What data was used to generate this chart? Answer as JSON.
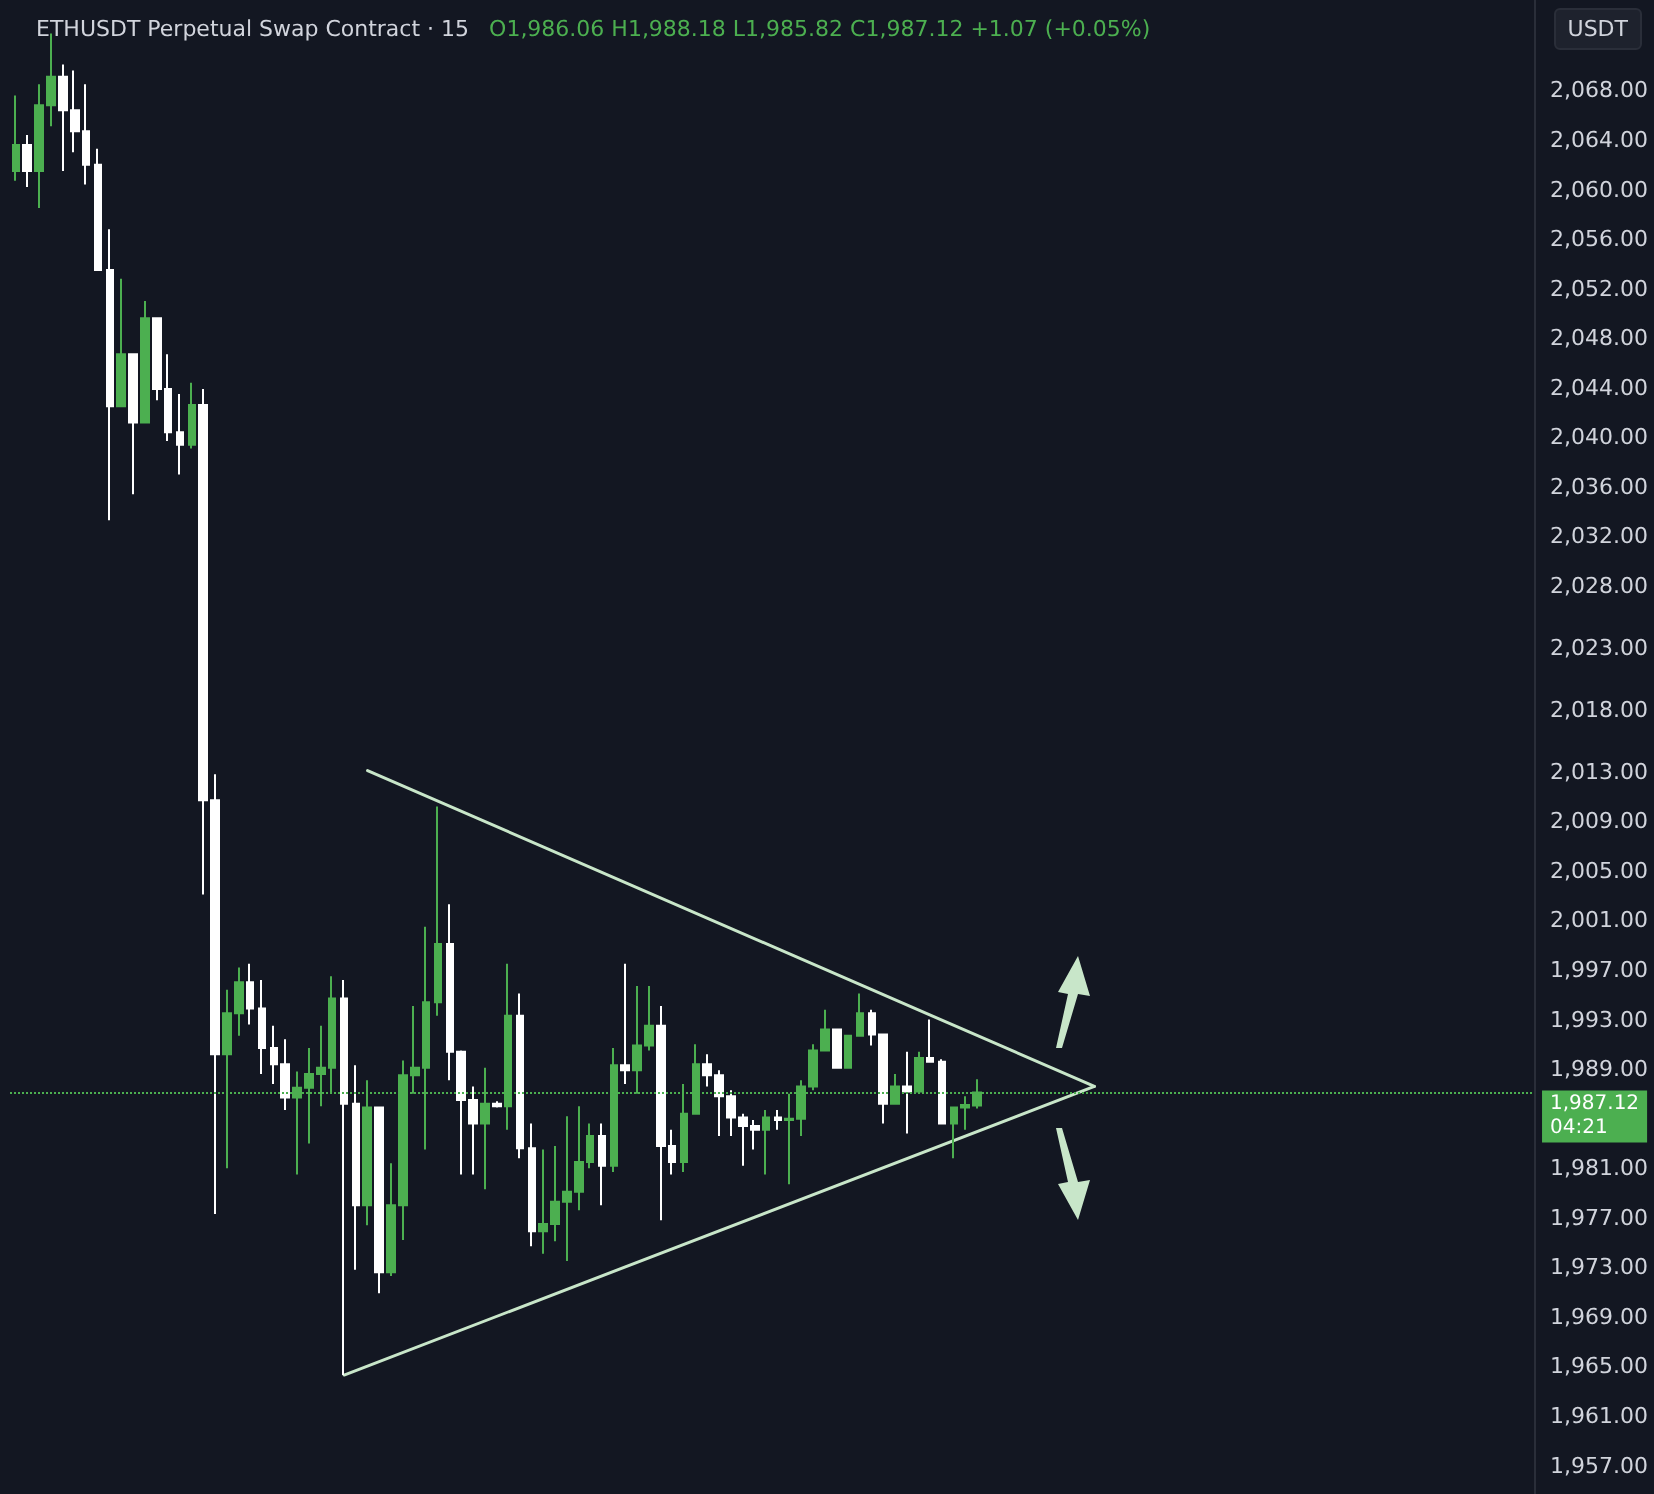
{
  "chart_data": {
    "type": "candlestick",
    "title": "ETHUSDT Perpetual Swap Contract · 15",
    "subtitle": "O1,986.06 H1,988.18 L1,985.82 C1,987.12 +1.07 (+0.05%)",
    "ylabel": "USDT",
    "categories": [
      null,
      null,
      null,
      null,
      null,
      null,
      null,
      null,
      null,
      null,
      null,
      null,
      null,
      null,
      null,
      null,
      null,
      null,
      null,
      null,
      null,
      null,
      null,
      null,
      null,
      null,
      null,
      null,
      null,
      null,
      null,
      null,
      null,
      null,
      null,
      null,
      null,
      null,
      null,
      null,
      null,
      null,
      null,
      null,
      null,
      null,
      null,
      null,
      null,
      null,
      null,
      null,
      null,
      null,
      null,
      null,
      null,
      null,
      null,
      null,
      null,
      null,
      null,
      null,
      null,
      null,
      null,
      null,
      null,
      null,
      null,
      null,
      null,
      null,
      null,
      null,
      null,
      null,
      null,
      null,
      null,
      null,
      null,
      null,
      null,
      null,
      null,
      null,
      null,
      null,
      null,
      null,
      null,
      null,
      null,
      null,
      null,
      null,
      null,
      null,
      null,
      null,
      null,
      null,
      null,
      null,
      null,
      null,
      null,
      null,
      null,
      null,
      null,
      null,
      null,
      null,
      null,
      null,
      null,
      null,
      null,
      null,
      null,
      null,
      null,
      null,
      null,
      null,
      null,
      null
    ],
    "ohlc": [
      [
        2061.5,
        2067.6,
        2060.7,
        2063.6
      ],
      [
        2063.6,
        2064.4,
        2060.2,
        2061.5
      ],
      [
        2061.5,
        2068.5,
        2058.5,
        2066.8
      ],
      [
        2066.8,
        2072.6,
        2065.1,
        2069.1
      ],
      [
        2069.1,
        2070.1,
        2061.5,
        2066.4
      ],
      [
        2066.4,
        2069.6,
        2063.0,
        2064.7
      ],
      [
        2064.7,
        2068.5,
        2060.4,
        2062.0
      ],
      [
        2062.0,
        2063.3,
        2053.5,
        2053.5
      ],
      [
        2053.5,
        2056.8,
        2033.3,
        2042.5
      ],
      [
        2042.5,
        2052.8,
        2042.5,
        2046.7
      ],
      [
        2046.7,
        2046.7,
        2035.4,
        2041.2
      ],
      [
        2041.2,
        2051.0,
        2041.2,
        2049.6
      ],
      [
        2049.6,
        2049.6,
        2043.0,
        2043.9
      ],
      [
        2043.9,
        2046.7,
        2039.7,
        2040.4
      ],
      [
        2040.4,
        2043.5,
        2037.0,
        2039.4
      ],
      [
        2039.4,
        2044.4,
        2039.1,
        2042.6
      ],
      [
        2042.6,
        2043.9,
        2003.1,
        2010.7
      ],
      [
        2010.7,
        2012.8,
        1977.3,
        1990.2
      ],
      [
        1990.2,
        1995.4,
        1981.0,
        1993.5
      ],
      [
        1993.5,
        1997.2,
        1991.7,
        1996.0
      ],
      [
        1996.0,
        1997.5,
        1992.6,
        1993.9
      ],
      [
        1993.9,
        1996.2,
        1988.6,
        1990.7
      ],
      [
        1990.7,
        1992.5,
        1987.8,
        1989.4
      ],
      [
        1989.4,
        1991.4,
        1985.7,
        1986.7
      ],
      [
        1986.7,
        1988.8,
        1980.5,
        1987.5
      ],
      [
        1987.5,
        1990.7,
        1983.0,
        1988.6
      ],
      [
        1988.6,
        1992.5,
        1986.0,
        1989.1
      ],
      [
        1989.1,
        1996.5,
        1987.0,
        1994.7
      ],
      [
        1994.7,
        1996.2,
        1964.3,
        1986.2
      ],
      [
        1986.2,
        1989.3,
        1972.8,
        1978.0
      ],
      [
        1978.0,
        1988.1,
        1976.4,
        1985.9
      ],
      [
        1985.9,
        1985.9,
        1970.9,
        1972.6
      ],
      [
        1972.6,
        1981.4,
        1972.3,
        1978.0
      ],
      [
        1978.0,
        1989.7,
        1975.2,
        1988.5
      ],
      [
        1988.5,
        1994.1,
        1987.0,
        1989.1
      ],
      [
        1989.1,
        2000.5,
        1982.5,
        1994.4
      ],
      [
        1994.4,
        2010.2,
        1993.3,
        1999.1
      ],
      [
        1999.1,
        2002.3,
        1988.1,
        1990.4
      ],
      [
        1990.4,
        1990.5,
        1980.5,
        1986.5
      ],
      [
        1986.5,
        1987.6,
        1980.5,
        1984.6
      ],
      [
        1984.6,
        1989.1,
        1979.3,
        1986.2
      ],
      [
        1986.2,
        1986.4,
        1985.9,
        1986.0
      ],
      [
        1986.0,
        1997.5,
        1984.1,
        1993.3
      ],
      [
        1993.3,
        1995.1,
        1981.8,
        1982.6
      ],
      [
        1982.6,
        1984.6,
        1974.7,
        1975.9
      ],
      [
        1975.9,
        1982.5,
        1974.1,
        1976.5
      ],
      [
        1976.5,
        1982.8,
        1975.1,
        1978.3
      ],
      [
        1978.3,
        1985.2,
        1973.5,
        1979.1
      ],
      [
        1979.1,
        1986.0,
        1977.6,
        1981.5
      ],
      [
        1981.5,
        1984.6,
        1981.0,
        1983.6
      ],
      [
        1983.6,
        1984.6,
        1978.0,
        1981.2
      ],
      [
        1981.2,
        1990.7,
        1980.7,
        1989.3
      ],
      [
        1989.3,
        1997.5,
        1987.8,
        1988.9
      ],
      [
        1988.9,
        1995.7,
        1987.0,
        1990.9
      ],
      [
        1990.9,
        1995.7,
        1990.5,
        1992.5
      ],
      [
        1992.5,
        1994.1,
        1976.8,
        1982.8
      ],
      [
        1982.8,
        1984.1,
        1980.5,
        1981.5
      ],
      [
        1981.5,
        1987.8,
        1980.7,
        1985.4
      ],
      [
        1985.4,
        1991.0,
        1985.4,
        1989.4
      ],
      [
        1989.4,
        1990.2,
        1987.6,
        1988.5
      ],
      [
        1988.5,
        1988.9,
        1983.6,
        1986.8
      ],
      [
        1986.8,
        1987.3,
        1983.6,
        1985.1
      ],
      [
        1985.1,
        1985.4,
        1981.2,
        1984.4
      ],
      [
        1984.4,
        1984.9,
        1982.5,
        1984.1
      ],
      [
        1984.1,
        1985.7,
        1980.5,
        1985.1
      ],
      [
        1985.1,
        1985.7,
        1984.1,
        1984.9
      ],
      [
        1984.9,
        1987.0,
        1979.7,
        1985.0
      ],
      [
        1985.0,
        1988.1,
        1983.6,
        1987.6
      ],
      [
        1987.6,
        1991.0,
        1987.3,
        1990.5
      ],
      [
        1990.5,
        1993.8,
        1990.5,
        1992.2
      ],
      [
        1992.2,
        1992.2,
        1989.1,
        1989.1
      ],
      [
        1989.1,
        1991.7,
        1989.1,
        1991.7
      ],
      [
        1991.7,
        1995.1,
        1991.7,
        1993.5
      ],
      [
        1993.5,
        1993.8,
        1990.9,
        1991.8
      ],
      [
        1991.8,
        1991.8,
        1984.6,
        1986.2
      ],
      [
        1986.2,
        1988.6,
        1986.2,
        1987.6
      ],
      [
        1987.6,
        1990.4,
        1983.8,
        1987.2
      ],
      [
        1987.2,
        1990.4,
        1987.2,
        1989.9
      ],
      [
        1989.9,
        1993.0,
        1989.6,
        1989.6
      ],
      [
        1989.6,
        1989.8,
        1984.6,
        1984.6
      ],
      [
        1984.6,
        1985.9,
        1981.8,
        1985.9
      ],
      [
        1985.9,
        1986.8,
        1984.1,
        1986.1
      ],
      [
        1986.06,
        1988.18,
        1985.82,
        1987.12
      ],
      null,
      null,
      null,
      null,
      null,
      null,
      null,
      null,
      null,
      null,
      null,
      null,
      null,
      null,
      null,
      null,
      null,
      null,
      null,
      null,
      null,
      null,
      null,
      null,
      null,
      null,
      null,
      null,
      null,
      null,
      null,
      null,
      null,
      null,
      null,
      null,
      null,
      null,
      null,
      null,
      null,
      null,
      null,
      null,
      null,
      null,
      null
    ],
    "colors": [
      "#4caf50",
      "#ffffff",
      "#4caf50",
      "#4caf50",
      "#ffffff",
      "#ffffff",
      "#ffffff",
      "#ffffff",
      "#ffffff",
      "#4caf50",
      "#ffffff",
      "#4caf50",
      "#ffffff",
      "#ffffff",
      "#ffffff",
      "#4caf50",
      "#ffffff",
      "#ffffff",
      "#4caf50",
      "#4caf50",
      "#ffffff",
      "#ffffff",
      "#ffffff",
      "#ffffff",
      "#4caf50",
      "#4caf50",
      "#4caf50",
      "#4caf50",
      "#ffffff",
      "#ffffff",
      "#4caf50",
      "#ffffff",
      "#4caf50",
      "#4caf50",
      "#4caf50",
      "#4caf50",
      "#4caf50",
      "#ffffff",
      "#ffffff",
      "#ffffff",
      "#4caf50",
      "#ffffff",
      "#4caf50",
      "#ffffff",
      "#ffffff",
      "#4caf50",
      "#4caf50",
      "#4caf50",
      "#4caf50",
      "#4caf50",
      "#ffffff",
      "#4caf50",
      "#ffffff",
      "#4caf50",
      "#4caf50",
      "#ffffff",
      "#ffffff",
      "#4caf50",
      "#4caf50",
      "#ffffff",
      "#ffffff",
      "#ffffff",
      "#ffffff",
      "#ffffff",
      "#4caf50",
      "#ffffff",
      "#4caf50",
      "#4caf50",
      "#4caf50",
      "#4caf50",
      "#ffffff",
      "#4caf50",
      "#4caf50",
      "#ffffff",
      "#ffffff",
      "#4caf50",
      "#ffffff",
      "#4caf50",
      "#ffffff",
      "#ffffff",
      "#4caf50",
      "#4caf50",
      "#4caf50",
      null,
      null,
      null,
      null,
      null,
      null,
      null,
      null,
      null,
      null,
      null,
      null,
      null,
      null,
      null,
      null,
      null,
      null,
      null,
      null,
      null,
      null,
      null,
      null,
      null,
      null,
      null,
      null,
      null,
      null,
      null,
      null,
      null,
      null,
      null,
      null,
      null,
      null,
      null,
      null,
      null,
      null,
      null,
      null,
      null,
      null,
      null
    ],
    "series": [
      {
        "type": "line",
        "color": "#c8e6c9",
        "values": [
          null,
          null,
          null,
          null,
          null,
          null,
          null,
          null,
          null,
          null,
          null,
          null,
          null,
          null,
          null,
          null,
          null,
          null,
          null,
          null,
          null,
          null,
          null,
          null,
          null,
          null,
          null,
          null,
          null,
          null,
          2013.1,
          null,
          null,
          null,
          null,
          null,
          null,
          null,
          null,
          null,
          null,
          null,
          null,
          null,
          null,
          null,
          null,
          null,
          null,
          null,
          null,
          null,
          null,
          null,
          null,
          null,
          null,
          null,
          null,
          null,
          null,
          null,
          null,
          null,
          null,
          null,
          null,
          null,
          null,
          null,
          null,
          null,
          null,
          null,
          null,
          null,
          null,
          null,
          null,
          null,
          null,
          null,
          null,
          null,
          null,
          null,
          null,
          null,
          null,
          null,
          null,
          null,
          1987.6,
          null,
          null,
          null,
          null,
          null,
          null,
          null,
          null,
          null,
          null,
          null,
          null,
          null,
          null,
          null,
          null,
          null,
          null,
          null,
          null,
          null,
          null,
          null,
          null,
          null,
          null,
          null,
          null,
          null,
          null,
          null,
          null,
          null,
          null,
          null,
          null,
          null
        ]
      },
      {
        "type": "line",
        "color": "#c8e6c9",
        "values": [
          null,
          null,
          null,
          null,
          null,
          null,
          null,
          null,
          null,
          null,
          null,
          null,
          null,
          null,
          null,
          null,
          null,
          null,
          null,
          null,
          null,
          null,
          null,
          null,
          null,
          null,
          null,
          null,
          1964.3,
          null,
          null,
          null,
          null,
          null,
          null,
          null,
          null,
          null,
          null,
          null,
          null,
          null,
          null,
          null,
          null,
          null,
          null,
          null,
          null,
          null,
          null,
          null,
          null,
          null,
          null,
          null,
          null,
          null,
          null,
          null,
          null,
          null,
          null,
          null,
          null,
          null,
          null,
          null,
          null,
          null,
          null,
          null,
          null,
          null,
          null,
          null,
          null,
          null,
          null,
          null,
          null,
          null,
          null,
          null,
          null,
          null,
          null,
          null,
          null,
          null,
          null,
          null,
          1987.6,
          null,
          null,
          null,
          null,
          null,
          null,
          null,
          null,
          null,
          null,
          null,
          null,
          null,
          null,
          null,
          null,
          null,
          null,
          null,
          null,
          null,
          null,
          null,
          null,
          null,
          null,
          null,
          null,
          null,
          null,
          null,
          null,
          null,
          null,
          null,
          null,
          null
        ]
      }
    ],
    "ylim": [
      1954.7,
      2075.3
    ],
    "yticks": [
      {
        "value": 2068,
        "label": "2,068.00"
      },
      {
        "value": 2064,
        "label": "2,064.00"
      },
      {
        "value": 2060,
        "label": "2,060.00"
      },
      {
        "value": 2056,
        "label": "2,056.00"
      },
      {
        "value": 2052,
        "label": "2,052.00"
      },
      {
        "value": 2048,
        "label": "2,048.00"
      },
      {
        "value": 2044,
        "label": "2,044.00"
      },
      {
        "value": 2040,
        "label": "2,040.00"
      },
      {
        "value": 2036,
        "label": "2,036.00"
      },
      {
        "value": 2032,
        "label": "2,032.00"
      },
      {
        "value": 2028,
        "label": "2,028.00"
      },
      {
        "value": 2023,
        "label": "2,023.00"
      },
      {
        "value": 2018,
        "label": "2,018.00"
      },
      {
        "value": 2013,
        "label": "2,013.00"
      },
      {
        "value": 2009,
        "label": "2,009.00"
      },
      {
        "value": 2005,
        "label": "2,005.00"
      },
      {
        "value": 2001,
        "label": "2,001.00"
      },
      {
        "value": 1997,
        "label": "1,997.00"
      },
      {
        "value": 1993,
        "label": "1,993.00"
      },
      {
        "value": 1989,
        "label": "1,989.00"
      },
      {
        "value": 1981,
        "label": "1,981.00"
      },
      {
        "value": 1977,
        "label": "1,977.00"
      },
      {
        "value": 1973,
        "label": "1,973.00"
      },
      {
        "value": 1969,
        "label": "1,969.00"
      },
      {
        "value": 1965,
        "label": "1,965.00"
      },
      {
        "value": 1961,
        "label": "1,961.00"
      },
      {
        "value": 1957,
        "label": "1,957.00"
      }
    ],
    "ref_lines": [
      {
        "axis": "y",
        "value": 1987.12,
        "label": "1,987.12",
        "color": "#4caf50",
        "line_style": "dotted"
      }
    ],
    "annotations": [
      "04:21"
    ],
    "tick_labels": "y",
    "grid": false
  }
}
